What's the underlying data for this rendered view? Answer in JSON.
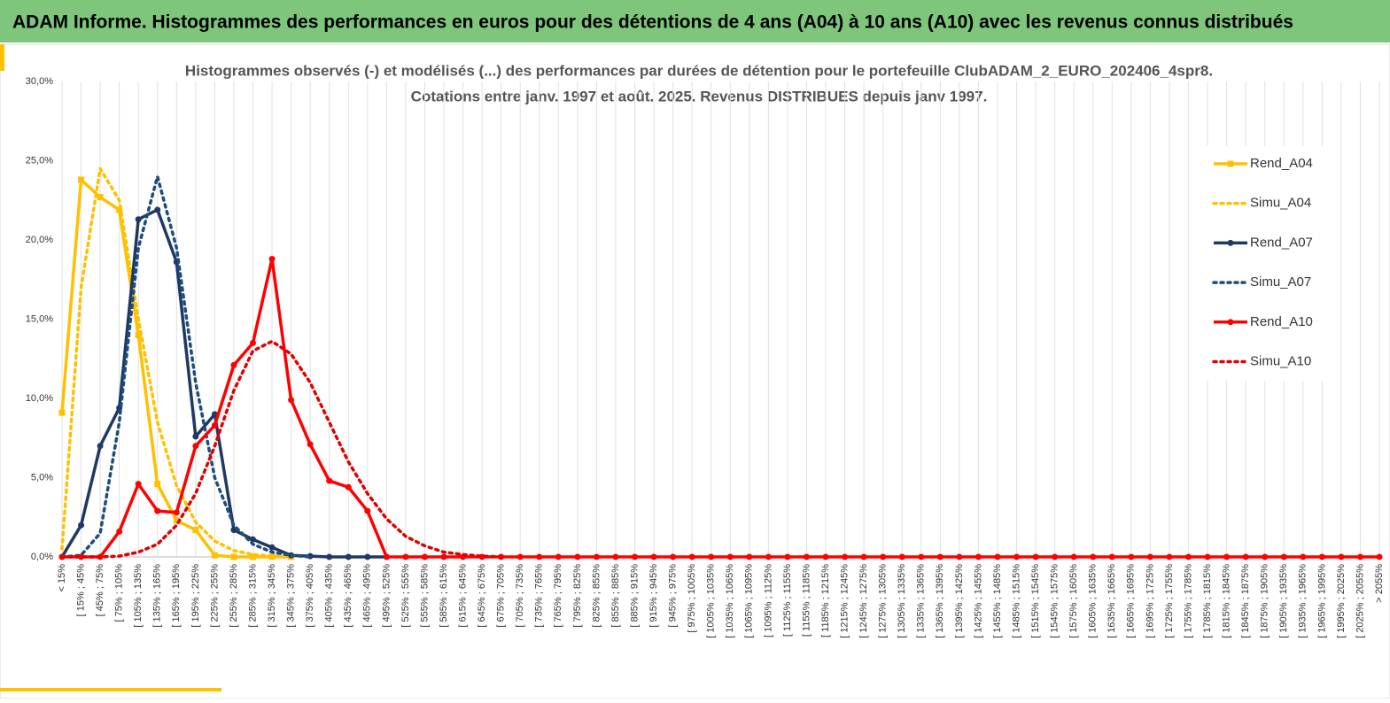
{
  "header": {
    "title": "ADAM Informe. Histogrammes des performances en euros pour des détentions de 4 ans (A04) à 10 ans (A10) avec les revenus connus distribués"
  },
  "chart_data": {
    "type": "line",
    "title": "Histogrammes observés (-) et modélisés (...) des performances par durées de détention pour  le portefeuille ClubADAM_2_EURO_202406_4spr8.",
    "subtitle": "Cotations entre janv. 1997 et août. 2025. Revenus DISTRIBUES depuis janv 1997.",
    "categories": [
      "< 15%",
      "[ 15% ; 45%",
      "[ 45% ; 75%",
      "[ 75% ; 105%",
      "[ 105% ; 135%",
      "[ 135% ; 165%",
      "[ 165% ; 195%",
      "[ 195% ; 225%",
      "[ 225% ; 255%",
      "[ 255% ; 285%",
      "[ 285% ; 315%",
      "[ 315% ; 345%",
      "[ 345% ; 375%",
      "[ 375% ; 405%",
      "[ 405% ; 435%",
      "[ 435% ; 465%",
      "[ 465% ; 495%",
      "[ 495% ; 525%",
      "[ 525% ; 555%",
      "[ 555% ; 585%",
      "[ 585% ; 615%",
      "[ 615% ; 645%",
      "[ 645% ; 675%",
      "[ 675% ; 705%",
      "[ 705% ; 735%",
      "[ 735% ; 765%",
      "[ 765% ; 795%",
      "[ 795% ; 825%",
      "[ 825% ; 855%",
      "[ 855% ; 885%",
      "[ 885% ; 915%",
      "[ 915% ; 945%",
      "[ 945% ; 975%",
      "[ 975% ; 1005%",
      "[ 1005% ; 1035%",
      "[ 1035% ; 1065%",
      "[ 1065% ; 1095%",
      "[ 1095% ; 1125%",
      "[ 1125% ; 1155%",
      "[ 1155% ; 1185%",
      "[ 1185% ; 1215%",
      "[ 1215% ; 1245%",
      "[ 1245% ; 1275%",
      "[ 1275% ; 1305%",
      "[ 1305% ; 1335%",
      "[ 1335% ; 1365%",
      "[ 1365% ; 1395%",
      "[ 1395% ; 1425%",
      "[ 1425% ; 1455%",
      "[ 1455% ; 1485%",
      "[ 1485% ; 1515%",
      "[ 1515% ; 1545%",
      "[ 1545% ; 1575%",
      "[ 1575% ; 1605%",
      "[ 1605% ; 1635%",
      "[ 1635% ; 1665%",
      "[ 1665% ; 1695%",
      "[ 1695% ; 1725%",
      "[ 1725% ; 1755%",
      "[ 1755% ; 1785%",
      "[ 1785% ; 1815%",
      "[ 1815% ; 1845%",
      "[ 1845% ; 1875%",
      "[ 1875% ; 1905%",
      "[ 1905% ; 1935%",
      "[ 1935% ; 1965%",
      "[ 1965% ; 1995%",
      "[ 1995% ; 2025%",
      "[ 2025% ; 2055%",
      "> 2055%"
    ],
    "series": [
      {
        "name": "Rend_A04",
        "color": "#FFC000",
        "dashed": false,
        "marker": "square",
        "values": [
          9.1,
          23.8,
          22.7,
          21.9,
          14,
          4.6,
          2.3,
          1.7,
          0.1,
          0,
          0,
          0,
          0,
          null,
          null,
          null,
          null,
          null,
          null,
          null,
          null,
          null,
          null,
          null,
          null,
          null,
          null,
          null,
          null,
          null,
          null,
          null,
          null,
          null,
          null,
          null,
          null,
          null,
          null,
          null,
          null,
          null,
          null,
          null,
          null,
          null,
          null,
          null,
          null,
          null,
          null,
          null,
          null,
          null,
          null,
          null,
          null,
          null,
          null,
          null,
          null,
          null,
          null,
          null,
          null,
          null,
          null,
          null,
          null,
          null
        ]
      },
      {
        "name": "Simu_A04",
        "color": "#FFC000",
        "dashed": true,
        "marker": "none",
        "values": [
          0.5,
          17,
          24.5,
          22.5,
          15,
          8.5,
          4.5,
          2.2,
          1,
          0.4,
          0.15,
          0.05,
          0,
          null,
          null,
          null,
          null,
          null,
          null,
          null,
          null,
          null,
          null,
          null,
          null,
          null,
          null,
          null,
          null,
          null,
          null,
          null,
          null,
          null,
          null,
          null,
          null,
          null,
          null,
          null,
          null,
          null,
          null,
          null,
          null,
          null,
          null,
          null,
          null,
          null,
          null,
          null,
          null,
          null,
          null,
          null,
          null,
          null,
          null,
          null,
          null,
          null,
          null,
          null,
          null,
          null,
          null,
          null,
          null,
          null
        ]
      },
      {
        "name": "Rend_A07",
        "color": "#1F3864",
        "dashed": false,
        "marker": "circle",
        "values": [
          0,
          2,
          7,
          9.4,
          21.3,
          21.9,
          18.6,
          7.6,
          9,
          1.7,
          1.1,
          0.6,
          0.1,
          0.05,
          0,
          0,
          0,
          0,
          null,
          null,
          null,
          null,
          null,
          null,
          null,
          null,
          null,
          null,
          null,
          null,
          null,
          null,
          null,
          null,
          null,
          null,
          null,
          null,
          null,
          null,
          null,
          null,
          null,
          null,
          null,
          null,
          null,
          null,
          null,
          null,
          null,
          null,
          null,
          null,
          null,
          null,
          null,
          null,
          null,
          null,
          null,
          null,
          null,
          null,
          null,
          null,
          null,
          null,
          null,
          null
        ]
      },
      {
        "name": "Simu_A07",
        "color": "#1F4E79",
        "dashed": true,
        "marker": "none",
        "values": [
          0,
          0.1,
          1.5,
          8.5,
          19.5,
          24,
          19.5,
          11,
          5,
          2,
          0.8,
          0.3,
          0.1,
          0,
          null,
          null,
          null,
          null,
          null,
          null,
          null,
          null,
          null,
          null,
          null,
          null,
          null,
          null,
          null,
          null,
          null,
          null,
          null,
          null,
          null,
          null,
          null,
          null,
          null,
          null,
          null,
          null,
          null,
          null,
          null,
          null,
          null,
          null,
          null,
          null,
          null,
          null,
          null,
          null,
          null,
          null,
          null,
          null,
          null,
          null,
          null,
          null,
          null,
          null,
          null,
          null,
          null,
          null,
          null,
          null
        ]
      },
      {
        "name": "Rend_A10",
        "color": "#FF0000",
        "dashed": false,
        "marker": "circle",
        "values": [
          0,
          0,
          0,
          1.6,
          4.6,
          2.9,
          2.8,
          7,
          8.3,
          12.1,
          13.5,
          18.8,
          9.9,
          7.1,
          4.8,
          4.4,
          2.9,
          0,
          0,
          0,
          0,
          0,
          0,
          0,
          0,
          0,
          0,
          0,
          0,
          0,
          0,
          0,
          0,
          0,
          0,
          0,
          0,
          0,
          0,
          0,
          0,
          0,
          0,
          0,
          0,
          0,
          0,
          0,
          0,
          0,
          0,
          0,
          0,
          0,
          0,
          0,
          0,
          0,
          0,
          0,
          0,
          0,
          0,
          0,
          0,
          0,
          0,
          0,
          0,
          0
        ]
      },
      {
        "name": "Simu_A10",
        "color": "#E00000",
        "dashed": true,
        "marker": "none",
        "values": [
          0,
          0,
          0,
          0.05,
          0.3,
          0.8,
          2,
          4,
          7,
          10.5,
          13,
          13.6,
          12.8,
          11,
          8.5,
          6,
          4,
          2.4,
          1.3,
          0.7,
          0.3,
          0.15,
          0.05,
          0,
          null,
          null,
          null,
          null,
          null,
          null,
          null,
          null,
          null,
          null,
          null,
          null,
          null,
          null,
          null,
          null,
          null,
          null,
          null,
          null,
          null,
          null,
          null,
          null,
          null,
          null,
          null,
          null,
          null,
          null,
          null,
          null,
          null,
          null,
          null,
          null,
          null,
          null,
          null,
          null,
          null,
          null,
          null,
          null,
          null,
          null
        ]
      }
    ],
    "ylim": [
      0,
      30
    ],
    "yticks": [
      {
        "value": 0,
        "label": "0,0%"
      },
      {
        "value": 5,
        "label": "5,0%"
      },
      {
        "value": 10,
        "label": "10,0%"
      },
      {
        "value": 15,
        "label": "15,0%"
      },
      {
        "value": 20,
        "label": "20,0%"
      },
      {
        "value": 25,
        "label": "25,0%"
      },
      {
        "value": 30,
        "label": "30,0%"
      }
    ],
    "grid": "x",
    "legend": "right"
  }
}
